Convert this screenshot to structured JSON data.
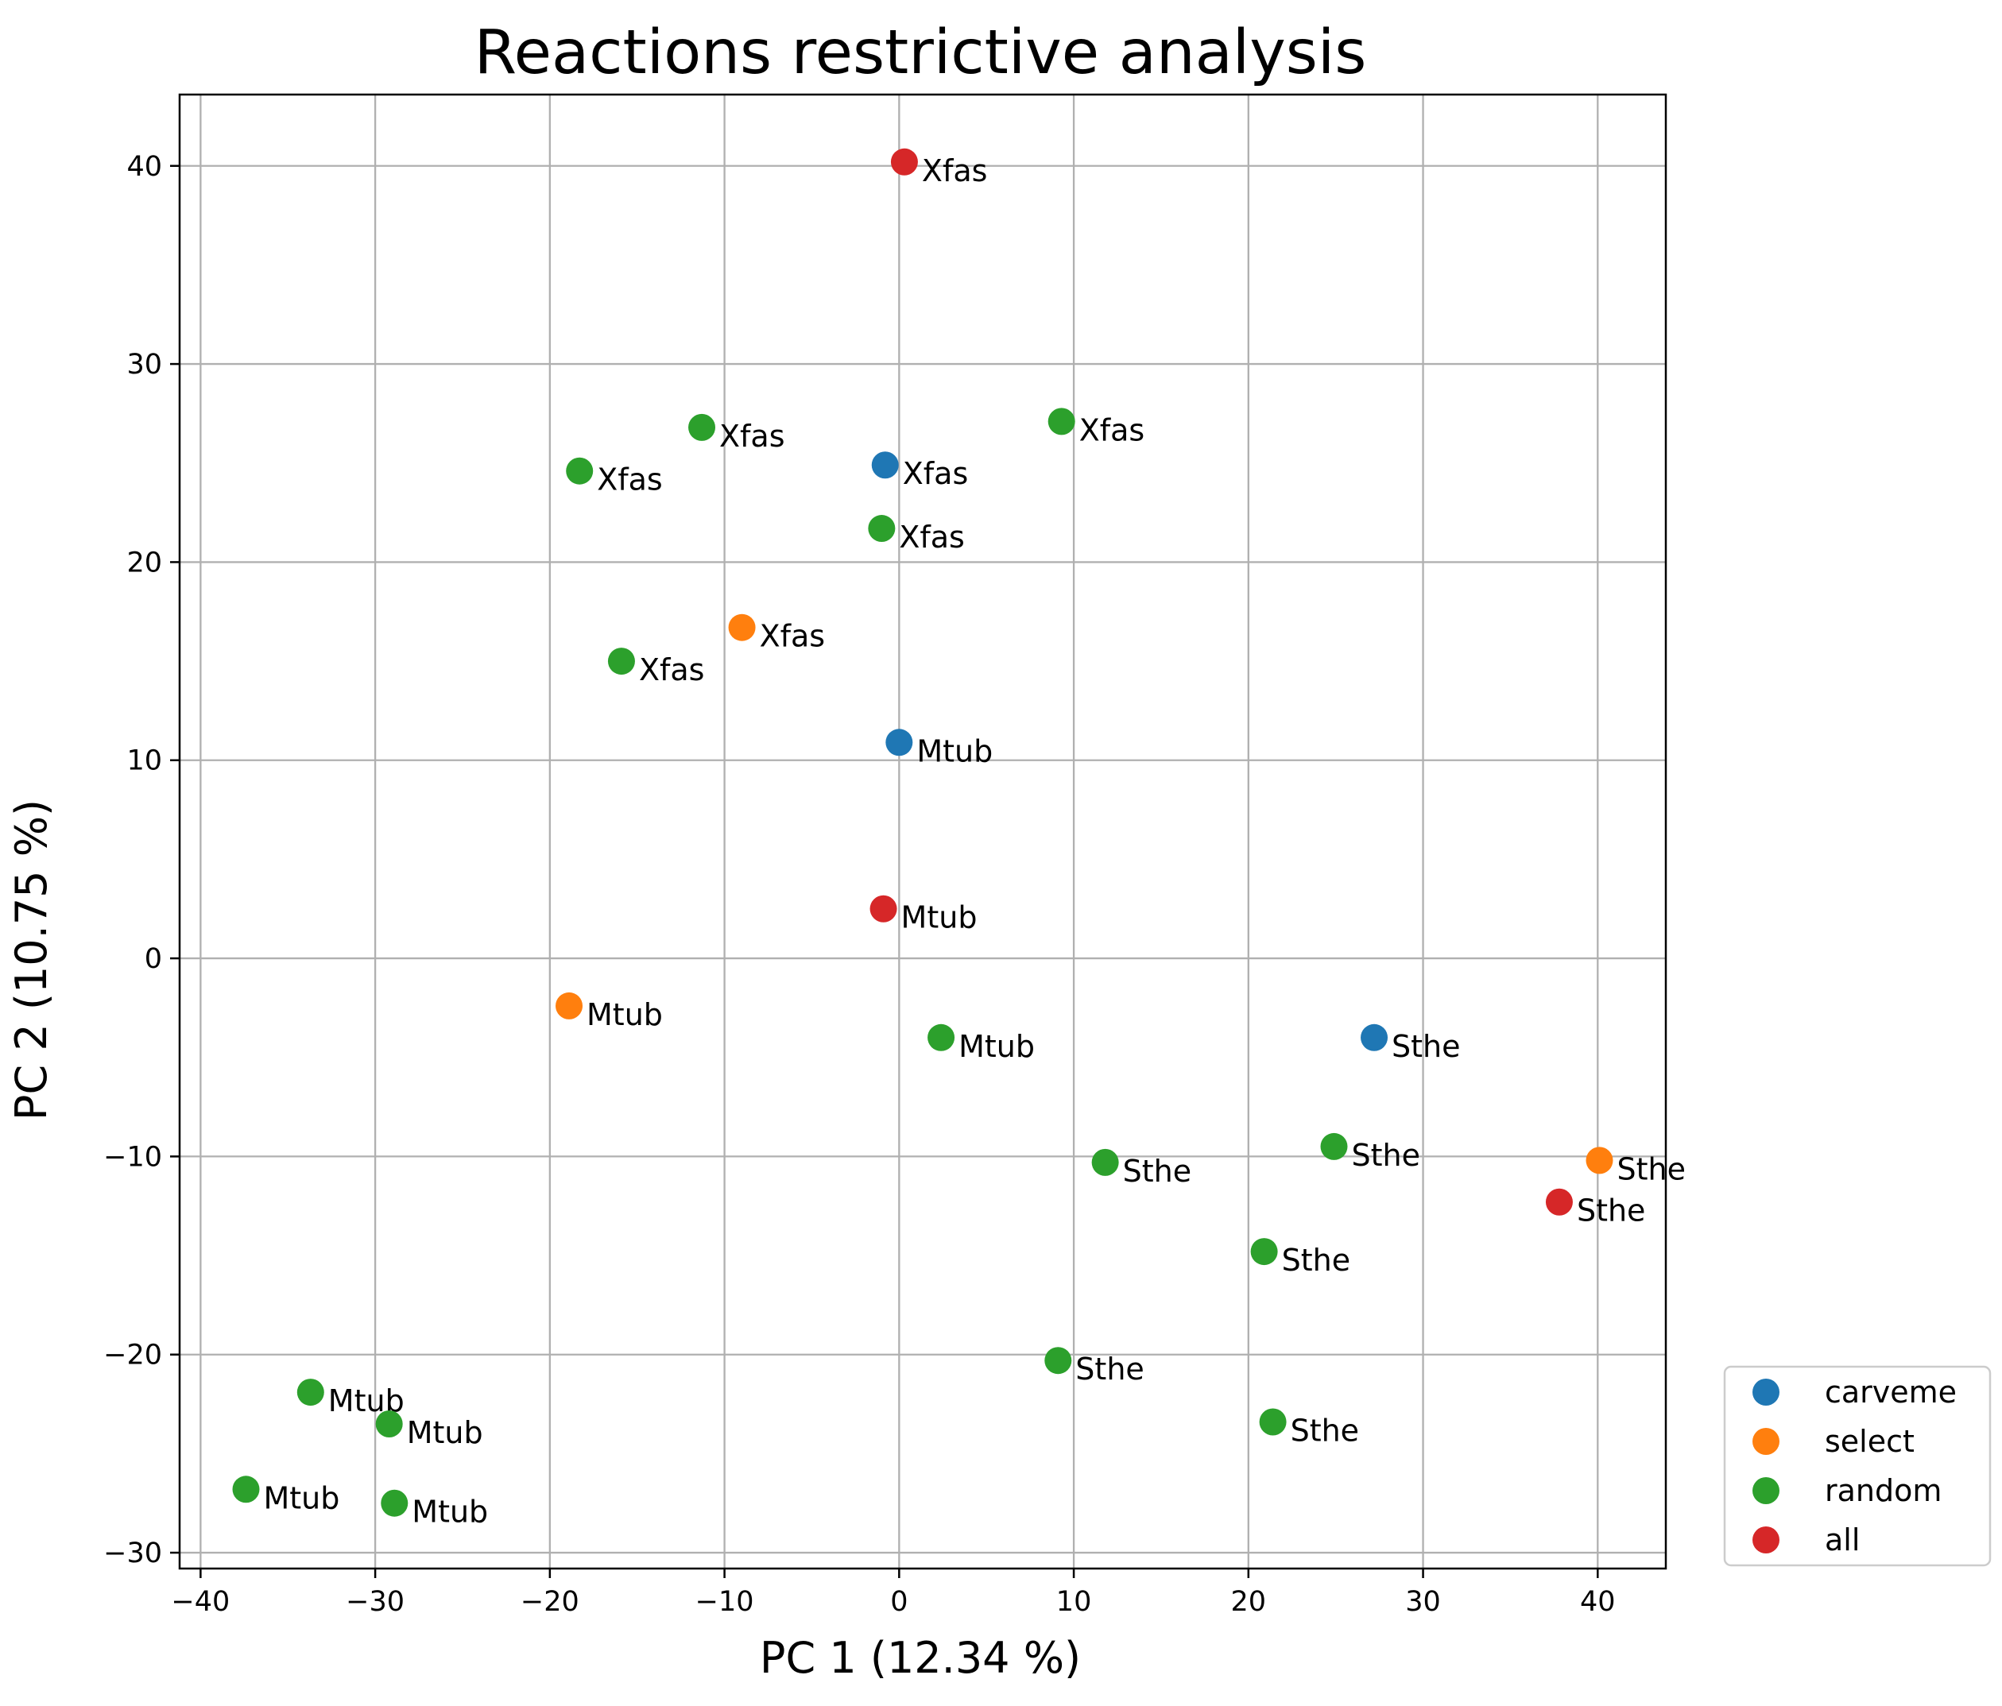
{
  "chart_data": {
    "type": "scatter",
    "title": "Reactions restrictive analysis",
    "xlabel": "PC 1 (12.34 %)",
    "ylabel": "PC 2 (10.75 %)",
    "xlim": [
      -41.2,
      43.9
    ],
    "ylim": [
      -30.8,
      43.6
    ],
    "xticks": [
      -40,
      -30,
      -20,
      -10,
      0,
      10,
      20,
      30,
      40
    ],
    "yticks": [
      -30,
      -20,
      -10,
      0,
      10,
      20,
      30,
      40
    ],
    "xtick_labels": [
      "−40",
      "−30",
      "−20",
      "−10",
      "0",
      "10",
      "20",
      "30",
      "40"
    ],
    "ytick_labels": [
      "−30",
      "−20",
      "−10",
      "0",
      "10",
      "20",
      "30",
      "40"
    ],
    "grid": true,
    "legend_position": "outside-bottom-right",
    "series": [
      {
        "name": "carveme",
        "color": "#1f77b4",
        "points": [
          {
            "x": -0.8,
            "y": 24.9,
            "label": "Xfas"
          },
          {
            "x": 0.0,
            "y": 10.9,
            "label": "Mtub"
          },
          {
            "x": 27.2,
            "y": -4.0,
            "label": "Sthe"
          }
        ]
      },
      {
        "name": "select",
        "color": "#ff7f0e",
        "points": [
          {
            "x": -9.0,
            "y": 16.7,
            "label": "Xfas"
          },
          {
            "x": -18.9,
            "y": -2.4,
            "label": "Mtub"
          },
          {
            "x": 40.1,
            "y": -10.2,
            "label": "Sthe"
          }
        ]
      },
      {
        "name": "random",
        "color": "#2ca02c",
        "points": [
          {
            "x": -11.3,
            "y": 26.8,
            "label": "Xfas"
          },
          {
            "x": -18.3,
            "y": 24.6,
            "label": "Xfas"
          },
          {
            "x": 9.3,
            "y": 27.1,
            "label": "Xfas"
          },
          {
            "x": -1.0,
            "y": 21.7,
            "label": "Xfas"
          },
          {
            "x": -15.9,
            "y": 15.0,
            "label": "Xfas"
          },
          {
            "x": 2.4,
            "y": -4.0,
            "label": "Mtub"
          },
          {
            "x": -33.7,
            "y": -21.9,
            "label": "Mtub"
          },
          {
            "x": -29.2,
            "y": -23.5,
            "label": "Mtub"
          },
          {
            "x": -37.4,
            "y": -26.8,
            "label": "Mtub"
          },
          {
            "x": -28.9,
            "y": -27.5,
            "label": "Mtub"
          },
          {
            "x": 11.8,
            "y": -10.3,
            "label": "Sthe"
          },
          {
            "x": 24.9,
            "y": -9.5,
            "label": "Sthe"
          },
          {
            "x": 20.9,
            "y": -14.8,
            "label": "Sthe"
          },
          {
            "x": 9.1,
            "y": -20.3,
            "label": "Sthe"
          },
          {
            "x": 21.4,
            "y": -23.4,
            "label": "Sthe"
          }
        ]
      },
      {
        "name": "all",
        "color": "#d62728",
        "points": [
          {
            "x": 0.3,
            "y": 40.2,
            "label": "Xfas"
          },
          {
            "x": -0.9,
            "y": 2.5,
            "label": "Mtub"
          },
          {
            "x": 37.8,
            "y": -12.3,
            "label": "Sthe"
          }
        ]
      }
    ]
  }
}
